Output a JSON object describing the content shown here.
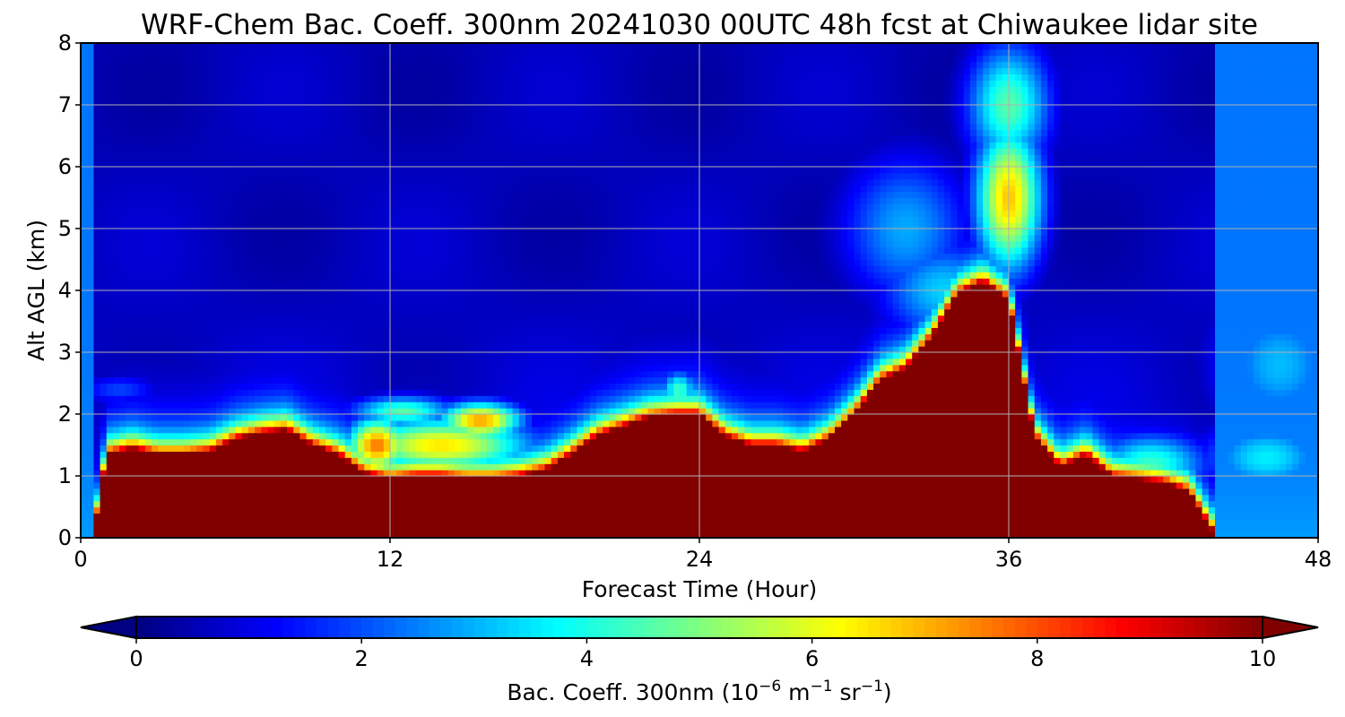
{
  "chart_data": {
    "type": "heatmap",
    "title": "WRF-Chem Bac. Coeff. 300nm  20241030 00UTC 48h fcst at Chiwaukee lidar site",
    "xlabel": "Forecast Time (Hour)",
    "ylabel": "Alt AGL (km)",
    "xlim": [
      0,
      48
    ],
    "ylim": [
      0,
      8
    ],
    "xticks": [
      0,
      12,
      24,
      36,
      48
    ],
    "yticks": [
      0,
      1,
      2,
      3,
      4,
      5,
      6,
      7,
      8
    ],
    "grid": true,
    "colormap": "jet",
    "colorbar": {
      "label_main": "Bac. Coeff. 300nm  (10",
      "label_exp1": "−6",
      "label_unit1": " m",
      "label_exp2": "−1",
      "label_unit2": " sr",
      "label_exp3": "−1",
      "label_close": ")",
      "range": [
        0,
        10
      ],
      "ticks": [
        0,
        2,
        4,
        6,
        8,
        10
      ],
      "extend": "both",
      "orientation": "horizontal",
      "position": "bottom"
    },
    "saturated_layer_top_km": {
      "hour": [
        0,
        0.5,
        1,
        2,
        3,
        4,
        5,
        6,
        7,
        8,
        9,
        10,
        11,
        12,
        13,
        14,
        15,
        16,
        17,
        18,
        19,
        20,
        21,
        22,
        23,
        24,
        25,
        26,
        27,
        28,
        29,
        30,
        31,
        32,
        33,
        34,
        35,
        36,
        37,
        38,
        39,
        40,
        41,
        42,
        43,
        44,
        45,
        46,
        47,
        48
      ],
      "top": [
        0,
        0,
        1.3,
        1.4,
        1.3,
        1.3,
        1.35,
        1.55,
        1.65,
        1.7,
        1.45,
        1.3,
        1.0,
        0.9,
        0.95,
        0.95,
        0.9,
        0.9,
        0.95,
        1.05,
        1.3,
        1.6,
        1.75,
        1.9,
        1.95,
        1.95,
        1.6,
        1.45,
        1.45,
        1.35,
        1.55,
        1.95,
        2.5,
        2.7,
        3.2,
        3.9,
        4.1,
        3.8,
        1.6,
        1.1,
        1.3,
        0.95,
        0.9,
        0.85,
        0.7,
        0,
        0,
        0,
        0,
        0
      ]
    },
    "features": [
      {
        "hour": 14,
        "alt_km": 1.5,
        "value": 6.5,
        "width_h": 3.5,
        "height_km": 0.45
      },
      {
        "hour": 15.5,
        "alt_km": 1.9,
        "value": 7.2,
        "width_h": 1.6,
        "height_km": 0.3
      },
      {
        "hour": 11.5,
        "alt_km": 1.5,
        "value": 7.6,
        "width_h": 1.2,
        "height_km": 0.45
      },
      {
        "hour": 18.5,
        "alt_km": 1.2,
        "value": 6.3,
        "width_h": 1.8,
        "height_km": 0.3
      },
      {
        "hour": 12.5,
        "alt_km": 2.05,
        "value": 4.6,
        "width_h": 2.0,
        "height_km": 0.25
      },
      {
        "hour": 23.2,
        "alt_km": 2.4,
        "value": 4.4,
        "width_h": 0.7,
        "height_km": 0.3
      },
      {
        "hour": 30.2,
        "alt_km": 1.6,
        "value": 8.2,
        "width_h": 0.6,
        "height_km": 0.6
      },
      {
        "hour": 36,
        "alt_km": 5.5,
        "value": 6.8,
        "width_h": 1.3,
        "height_km": 1.2
      },
      {
        "hour": 36,
        "alt_km": 7.0,
        "value": 4.6,
        "width_h": 1.6,
        "height_km": 1.0
      },
      {
        "hour": 33.5,
        "alt_km": 4.0,
        "value": 3.3,
        "width_h": 2.5,
        "height_km": 0.8
      },
      {
        "hour": 32,
        "alt_km": 5.0,
        "value": 2.9,
        "width_h": 2.5,
        "height_km": 1.2
      },
      {
        "hour": 41.5,
        "alt_km": 1.2,
        "value": 4.3,
        "width_h": 2.2,
        "height_km": 0.5
      },
      {
        "hour": 46.5,
        "alt_km": 2.8,
        "value": 3.1,
        "width_h": 2.5,
        "height_km": 1.1
      },
      {
        "hour": 46,
        "alt_km": 1.3,
        "value": 3.6,
        "width_h": 2.5,
        "height_km": 0.6
      },
      {
        "hour": 1.5,
        "alt_km": 2.4,
        "value": 1.9,
        "width_h": 1.6,
        "height_km": 0.25
      }
    ]
  }
}
